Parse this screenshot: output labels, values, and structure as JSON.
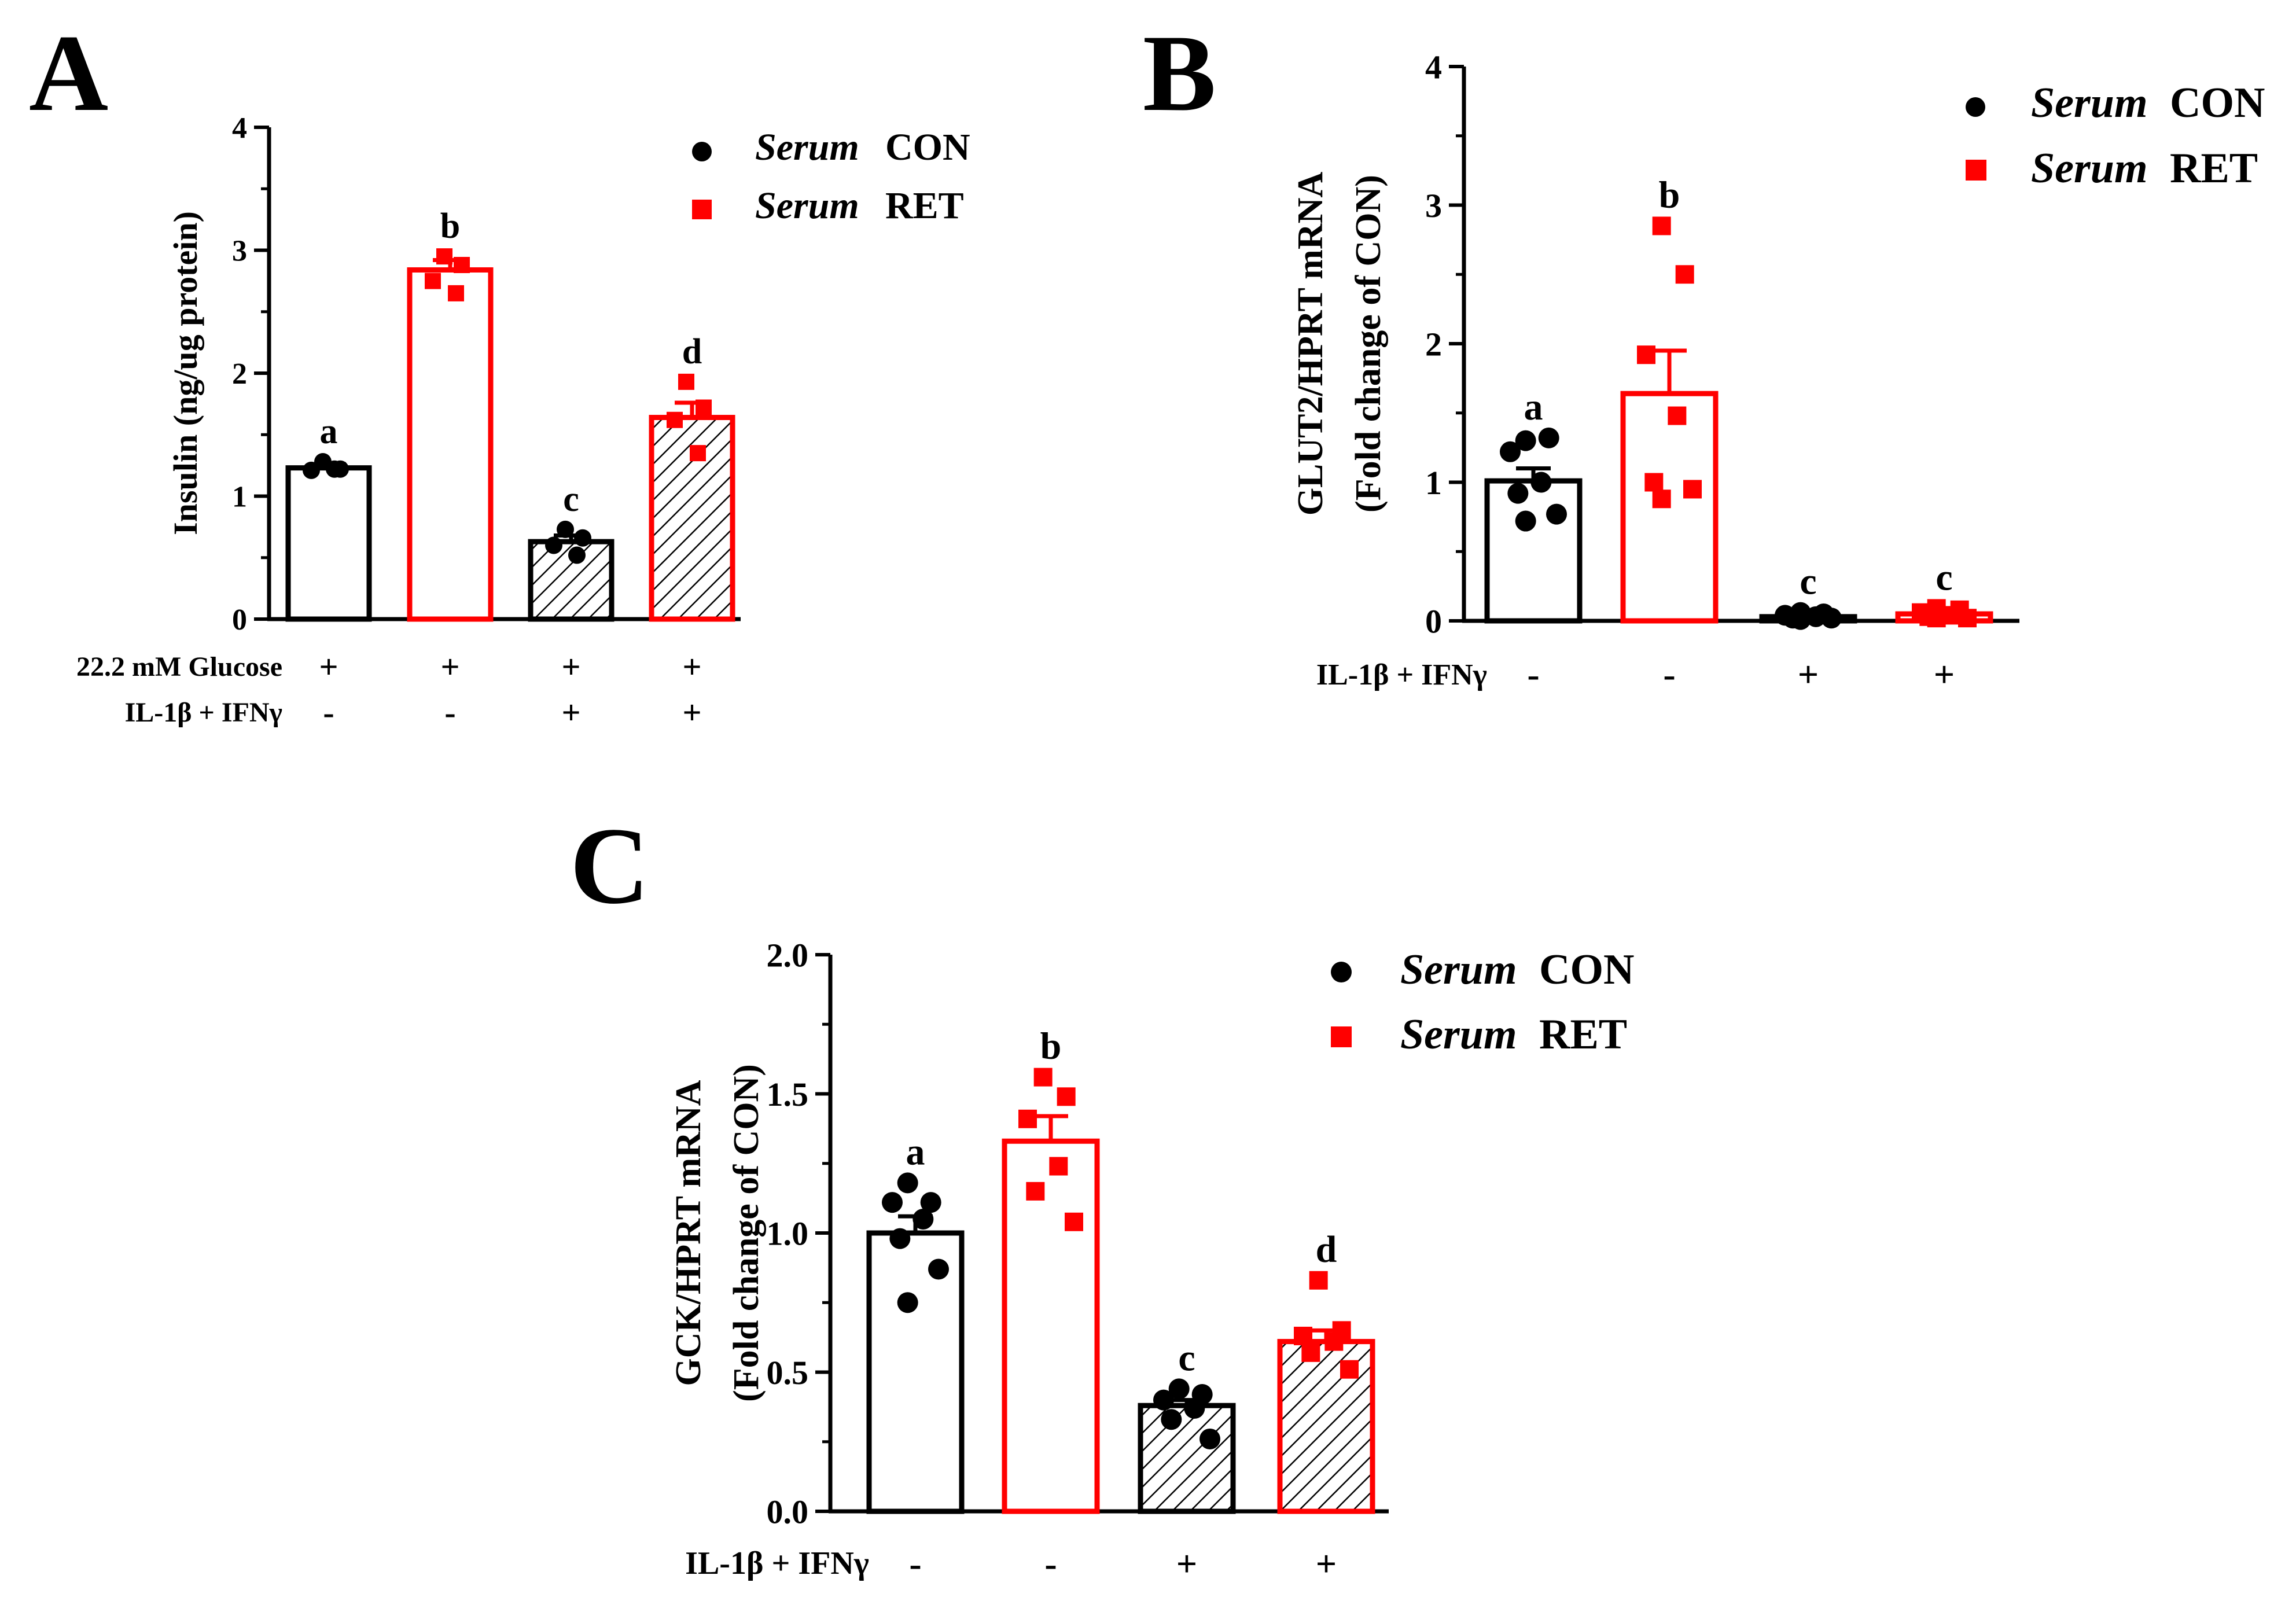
{
  "colors": {
    "con": "#000000",
    "ret": "#ff0000",
    "axis": "#000000"
  },
  "legend": {
    "serum_word": "Serum",
    "con_label": "CON",
    "ret_label": "RET"
  },
  "chart_data": [
    {
      "panel": "A",
      "type": "bar",
      "ylabel": [
        "Insulin (ng/ug protein)"
      ],
      "ylim": [
        0,
        4
      ],
      "yticks": [
        "0",
        "1",
        "2",
        "3",
        "4"
      ],
      "row_labels": [
        "22.2 mM Glucose",
        "IL-1β + IFNγ"
      ],
      "rows": [
        [
          "+",
          "+",
          "+",
          "+"
        ],
        [
          "-",
          "-",
          "+",
          "+"
        ]
      ],
      "series": [
        {
          "name": "Serum CON",
          "group": "con",
          "hatched": false,
          "value": 1.23,
          "sem": 0.03,
          "letter": "a",
          "points": [
            1.28,
            1.22,
            1.21,
            1.22
          ]
        },
        {
          "name": "Serum RET",
          "group": "ret",
          "hatched": false,
          "value": 2.84,
          "sem": 0.08,
          "letter": "b",
          "points": [
            2.95,
            2.88,
            2.75,
            2.65
          ]
        },
        {
          "name": "Serum CON",
          "group": "con",
          "hatched": true,
          "value": 0.63,
          "sem": 0.05,
          "letter": "c",
          "points": [
            0.73,
            0.66,
            0.6,
            0.52
          ]
        },
        {
          "name": "Serum RET",
          "group": "ret",
          "hatched": true,
          "value": 1.64,
          "sem": 0.12,
          "letter": "d",
          "points": [
            1.93,
            1.72,
            1.62,
            1.35
          ]
        }
      ]
    },
    {
      "panel": "B",
      "type": "bar",
      "ylabel": [
        "GLUT2/HPRT mRNA",
        "(Fold change of CON)"
      ],
      "ylim": [
        0,
        4
      ],
      "yticks": [
        "0",
        "1",
        "2",
        "3",
        "4"
      ],
      "row_labels": [
        "IL-1β + IFNγ"
      ],
      "rows": [
        [
          "-",
          "-",
          "+",
          "+"
        ]
      ],
      "series": [
        {
          "name": "Serum CON",
          "group": "con",
          "hatched": false,
          "value": 1.01,
          "sem": 0.09,
          "letter": "a",
          "points": [
            1.3,
            1.32,
            1.22,
            1.0,
            0.92,
            0.77,
            0.72
          ]
        },
        {
          "name": "Serum RET",
          "group": "ret",
          "hatched": false,
          "value": 1.64,
          "sem": 0.31,
          "letter": "b",
          "points": [
            2.85,
            2.5,
            1.92,
            1.48,
            1.0,
            0.95,
            0.88
          ]
        },
        {
          "name": "Serum CON",
          "group": "con",
          "hatched": false,
          "value": 0.03,
          "sem": 0.01,
          "letter": "c",
          "points": [
            0.06,
            0.05,
            0.04,
            0.03,
            0.02,
            0.02,
            0.01
          ]
        },
        {
          "name": "Serum RET",
          "group": "ret",
          "hatched": false,
          "value": 0.05,
          "sem": 0.01,
          "letter": "c",
          "points": [
            0.09,
            0.08,
            0.06,
            0.04,
            0.03,
            0.02,
            0.02
          ]
        }
      ]
    },
    {
      "panel": "C",
      "type": "bar",
      "ylabel": [
        "GCK/HPRT mRNA",
        "(Fold change of CON)"
      ],
      "ylim": [
        0,
        2
      ],
      "yticks": [
        "0.0",
        "0.5",
        "1.0",
        "1.5",
        "2.0"
      ],
      "row_labels": [
        "IL-1β + IFNγ"
      ],
      "rows": [
        [
          "-",
          "-",
          "+",
          "+"
        ]
      ],
      "series": [
        {
          "name": "Serum CON",
          "group": "con",
          "hatched": false,
          "value": 1.0,
          "sem": 0.06,
          "letter": "a",
          "points": [
            1.18,
            1.11,
            1.11,
            1.05,
            0.98,
            0.87,
            0.75
          ]
        },
        {
          "name": "Serum RET",
          "group": "ret",
          "hatched": false,
          "value": 1.33,
          "sem": 0.09,
          "letter": "b",
          "points": [
            1.56,
            1.49,
            1.41,
            1.24,
            1.15,
            1.04
          ]
        },
        {
          "name": "Serum CON",
          "group": "con",
          "hatched": true,
          "value": 0.38,
          "sem": 0.02,
          "letter": "c",
          "points": [
            0.44,
            0.42,
            0.4,
            0.37,
            0.33,
            0.26
          ]
        },
        {
          "name": "Serum RET",
          "group": "ret",
          "hatched": true,
          "value": 0.61,
          "sem": 0.04,
          "letter": "d",
          "points": [
            0.83,
            0.65,
            0.63,
            0.61,
            0.57,
            0.51
          ]
        }
      ]
    }
  ]
}
